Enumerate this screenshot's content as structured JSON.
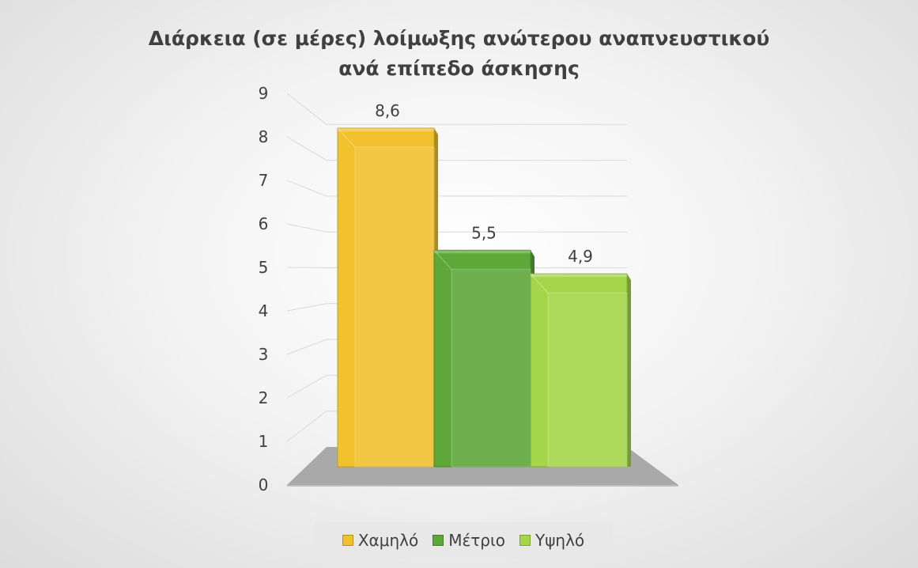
{
  "chart_data": {
    "type": "bar",
    "title": "Διάρκεια (σε μέρες) λοίμωξης ανώτερου αναπνευστικού ανά επίπεδο άσκησης",
    "title_lines": [
      "Διάρκεια (σε μέρες) λοίμωξης ανώτερου αναπνευστικού",
      "ανά επίπεδο άσκησης"
    ],
    "categories": [
      ""
    ],
    "series": [
      {
        "name": "Χαμηλό",
        "values": [
          8.6
        ],
        "color": "#f2c12e"
      },
      {
        "name": "Μέτριο",
        "values": [
          5.5
        ],
        "color": "#5ea83a"
      },
      {
        "name": "Υψηλό",
        "values": [
          4.9
        ],
        "color": "#a5d64a"
      }
    ],
    "data_labels": [
      "8,6",
      "5,5",
      "4,9"
    ],
    "y_ticks": [
      "0",
      "1",
      "2",
      "3",
      "4",
      "5",
      "6",
      "7",
      "8",
      "9"
    ],
    "xlabel": "",
    "ylabel": "",
    "ylim": [
      0,
      9
    ],
    "grid": true,
    "legend_position": "bottom"
  }
}
